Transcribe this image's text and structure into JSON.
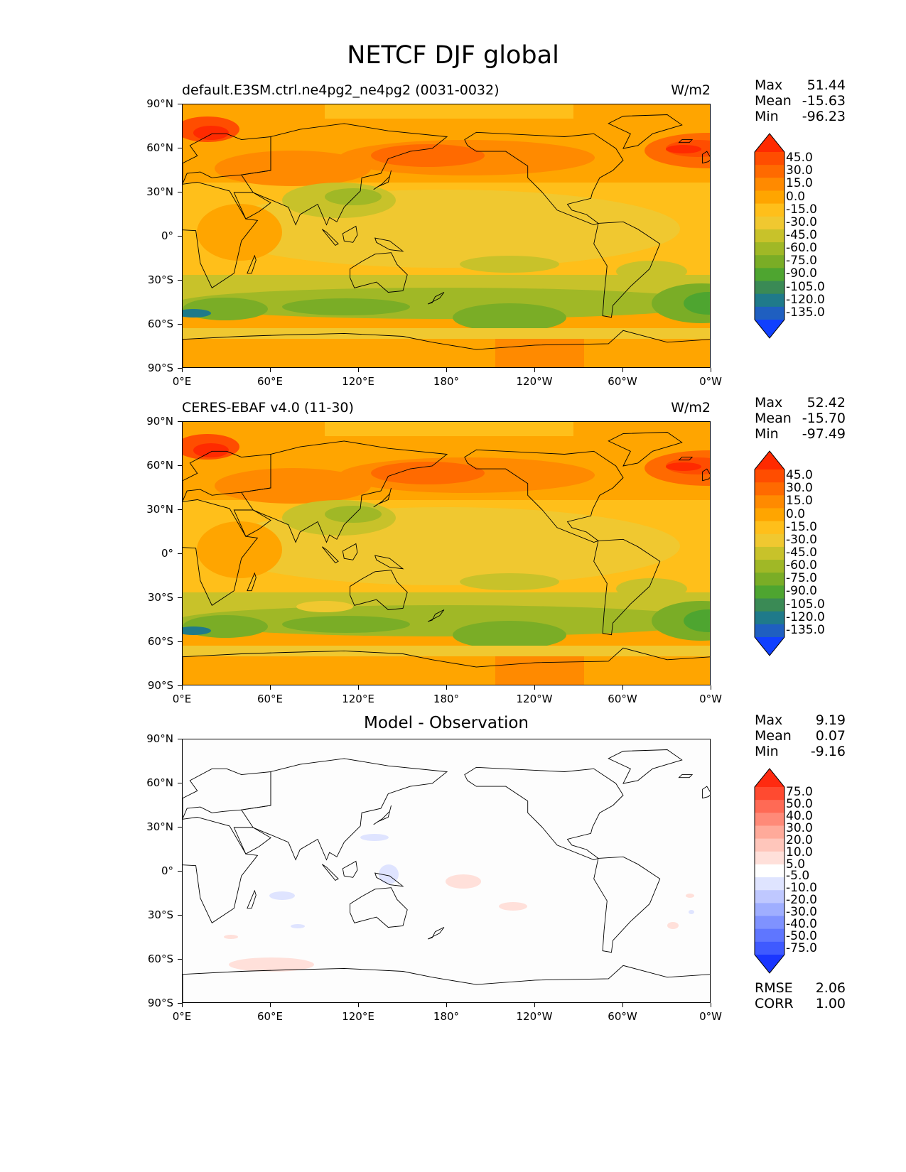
{
  "title": "NETCF DJF global",
  "panels": [
    {
      "id": "test",
      "left_title": "default.E3SM.ctrl.ne4pg2_ne4pg2 (0031-0032)",
      "right_title": "W/m2",
      "center_title": "",
      "stats": [
        {
          "label": "Max",
          "value": "51.44"
        },
        {
          "label": "Mean",
          "value": "-15.63"
        },
        {
          "label": "Min",
          "value": "-96.23"
        }
      ],
      "extra_stats": [],
      "colorbar": "field"
    },
    {
      "id": "ref",
      "left_title": "CERES-EBAF v4.0 (11-30)",
      "right_title": "W/m2",
      "center_title": "",
      "stats": [
        {
          "label": "Max",
          "value": "52.42"
        },
        {
          "label": "Mean",
          "value": "-15.70"
        },
        {
          "label": "Min",
          "value": "-97.49"
        }
      ],
      "extra_stats": [],
      "colorbar": "field"
    },
    {
      "id": "diff",
      "left_title": "",
      "right_title": "",
      "center_title": "Model - Observation",
      "stats": [
        {
          "label": "Max",
          "value": "9.19"
        },
        {
          "label": "Mean",
          "value": "0.07"
        },
        {
          "label": "Min",
          "value": "-9.16"
        }
      ],
      "extra_stats": [
        {
          "label": "RMSE",
          "value": "2.06"
        },
        {
          "label": "CORR",
          "value": "1.00"
        }
      ],
      "colorbar": "diff"
    }
  ],
  "axes": {
    "y_ticks": [
      "90°N",
      "60°N",
      "30°N",
      "0°",
      "30°S",
      "60°S",
      "90°S"
    ],
    "x_ticks": [
      "0°E",
      "60°E",
      "120°E",
      "180°",
      "120°W",
      "60°W",
      "0°W"
    ]
  },
  "colorbars": {
    "field": {
      "labels": [
        "45.0",
        "30.0",
        "15.0",
        "0.0",
        "-15.0",
        "-30.0",
        "-45.0",
        "-60.0",
        "-75.0",
        "-90.0",
        "-105.0",
        "-120.0",
        "-135.0"
      ],
      "colors": [
        "#ff2a00",
        "#ff4d00",
        "#ff6a00",
        "#ff8a00",
        "#ffa500",
        "#ffbf1a",
        "#f0c830",
        "#c8c22a",
        "#a0b826",
        "#7aad26",
        "#4ea530",
        "#3a8a55",
        "#1f7a8a",
        "#1f5fc0",
        "#1040ff"
      ]
    },
    "diff": {
      "labels": [
        "75.0",
        "50.0",
        "40.0",
        "30.0",
        "20.0",
        "10.0",
        "5.0",
        "-5.0",
        "-10.0",
        "-20.0",
        "-30.0",
        "-40.0",
        "-50.0",
        "-75.0"
      ],
      "colors": [
        "#ff2a10",
        "#ff4a30",
        "#ff6a55",
        "#ff8a78",
        "#ffaa9a",
        "#ffc6bb",
        "#ffe0da",
        "#ffffff",
        "#dfe4ff",
        "#bfc8ff",
        "#9faeff",
        "#7f92ff",
        "#5f76ff",
        "#3f5aff",
        "#1a36ff"
      ]
    }
  }
}
